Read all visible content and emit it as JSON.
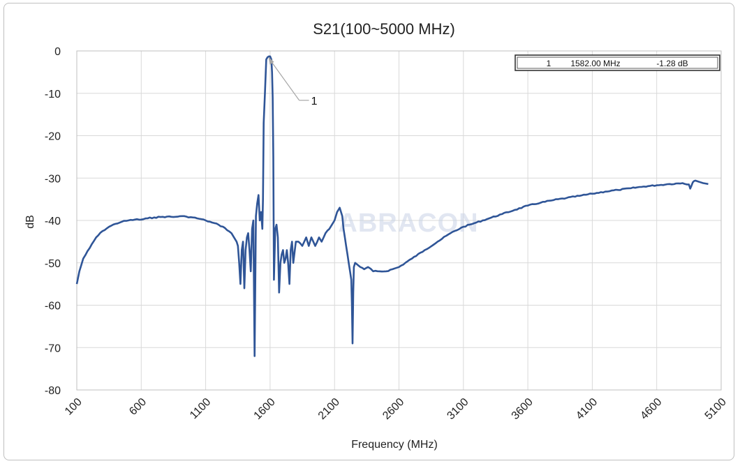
{
  "chart_data": {
    "type": "line",
    "title": "S21(100~5000 MHz)",
    "xlabel": "Frequency (MHz)",
    "ylabel": "dB",
    "xlim": [
      100,
      5100
    ],
    "ylim": [
      -80,
      0
    ],
    "x_ticks": [
      "100",
      "600",
      "1100",
      "1600",
      "2100",
      "2600",
      "3100",
      "3600",
      "4100",
      "4600",
      "5100"
    ],
    "y_ticks": [
      "0",
      "-10",
      "-20",
      "-30",
      "-40",
      "-50",
      "-60",
      "-70",
      "-80"
    ],
    "grid": true,
    "legend": "none",
    "series": [
      {
        "color": "#2f5597",
        "x": [
          100,
          120,
          150,
          200,
          250,
          300,
          350,
          400,
          450,
          500,
          550,
          600,
          650,
          700,
          750,
          800,
          850,
          900,
          950,
          1000,
          1050,
          1100,
          1150,
          1200,
          1250,
          1300,
          1320,
          1340,
          1350,
          1360,
          1370,
          1380,
          1390,
          1400,
          1410,
          1420,
          1430,
          1440,
          1450,
          1460,
          1470,
          1480,
          1490,
          1500,
          1510,
          1520,
          1530,
          1540,
          1545,
          1550,
          1560,
          1570,
          1580,
          1590,
          1600,
          1610,
          1615,
          1620,
          1625,
          1630,
          1640,
          1650,
          1660,
          1670,
          1680,
          1690,
          1700,
          1710,
          1720,
          1730,
          1740,
          1750,
          1760,
          1770,
          1780,
          1800,
          1820,
          1850,
          1880,
          1900,
          1920,
          1950,
          1980,
          2000,
          2030,
          2060,
          2080,
          2100,
          2120,
          2140,
          2160,
          2170,
          2180,
          2190,
          2200,
          2210,
          2220,
          2230,
          2235,
          2240,
          2245,
          2250,
          2260,
          2280,
          2300,
          2330,
          2360,
          2400,
          2450,
          2500,
          2550,
          2600,
          2700,
          2800,
          2900,
          3000,
          3100,
          3200,
          3300,
          3400,
          3500,
          3600,
          3700,
          3800,
          3900,
          4000,
          4100,
          4200,
          4300,
          4400,
          4500,
          4600,
          4700,
          4800,
          4850,
          4860,
          4870,
          4880,
          4890,
          4900,
          4920,
          4940,
          4960,
          4980,
          5000
        ],
        "y": [
          -55,
          -52,
          -49,
          -46.5,
          -44,
          -42.5,
          -41.5,
          -40.8,
          -40.3,
          -40,
          -39.8,
          -39.8,
          -39.5,
          -39.3,
          -39.2,
          -39.1,
          -39.2,
          -39,
          -39.1,
          -39.3,
          -39.6,
          -40,
          -40.5,
          -41,
          -41.8,
          -43,
          -44,
          -45,
          -46,
          -50,
          -55,
          -47,
          -45,
          -56,
          -47,
          -44,
          -43,
          -47,
          -52,
          -42,
          -40,
          -72,
          -39,
          -36,
          -34,
          -40,
          -38,
          -42,
          -35,
          -17,
          -10,
          -2,
          -1.5,
          -1.3,
          -1.28,
          -2,
          -5,
          -11,
          -25,
          -54,
          -42,
          -41,
          -44,
          -57,
          -50,
          -48,
          -47,
          -50,
          -49,
          -47,
          -50,
          -55,
          -47,
          -45,
          -50,
          -45,
          -45,
          -46,
          -44,
          -46,
          -44,
          -46,
          -44,
          -45,
          -43,
          -42,
          -41,
          -40,
          -38,
          -37,
          -39,
          -42,
          -44,
          -46,
          -48,
          -50,
          -52,
          -54,
          -60,
          -69,
          -57,
          -51,
          -50,
          -50.5,
          -51,
          -51.5,
          -51,
          -52,
          -52,
          -52,
          -51.5,
          -51,
          -49,
          -47,
          -45,
          -43,
          -41.5,
          -40.5,
          -39.5,
          -38.5,
          -37.5,
          -36.5,
          -35.8,
          -35.2,
          -34.7,
          -34.2,
          -33.7,
          -33.2,
          -32.8,
          -32.4,
          -32,
          -31.7,
          -31.4,
          -31.2,
          -31.5,
          -32.5,
          -31.8,
          -31,
          -30.7,
          -30.6,
          -30.8,
          -31,
          -31.2,
          -31.3,
          -31.4
        ]
      }
    ],
    "marker": {
      "id": "1",
      "x": 1582,
      "y": -1.28,
      "freq_text": "1582.00 MHz",
      "value_text": "-1.28 dB"
    }
  },
  "watermark": "ABRACON"
}
